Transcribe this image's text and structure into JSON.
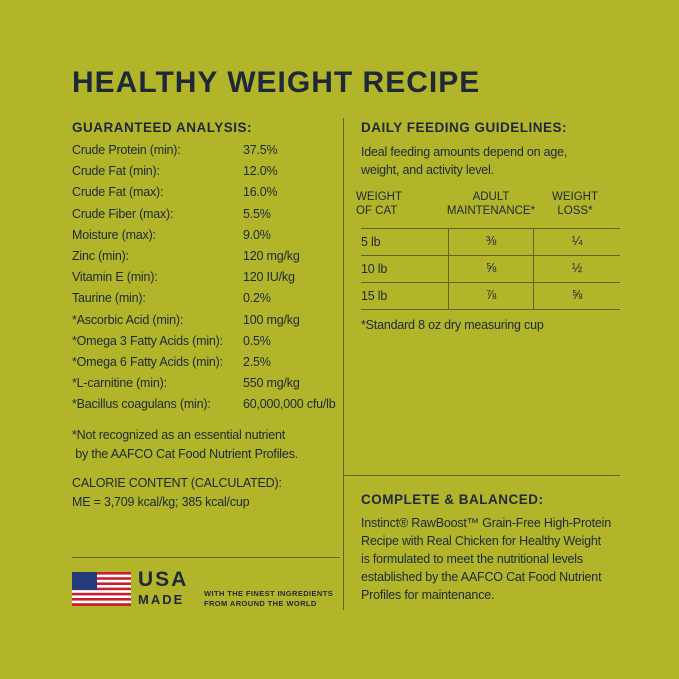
{
  "title": "HEALTHY WEIGHT RECIPE",
  "analysis": {
    "heading": "GUARANTEED ANALYSIS:",
    "rows": [
      [
        "Crude Protein (min):",
        "37.5%"
      ],
      [
        "Crude Fat (min):",
        "12.0%"
      ],
      [
        "Crude Fat (max):",
        "16.0%"
      ],
      [
        "Crude Fiber (max):",
        "5.5%"
      ],
      [
        "Moisture (max):",
        "9.0%"
      ],
      [
        "Zinc (min):",
        "120 mg/kg"
      ],
      [
        "Vitamin E (min):",
        "120 IU/kg"
      ],
      [
        "Taurine (min):",
        "0.2%"
      ],
      [
        "*Ascorbic Acid (min):",
        "100 mg/kg"
      ],
      [
        "*Omega 3 Fatty Acids (min):",
        "0.5%"
      ],
      [
        "*Omega 6 Fatty Acids (min):",
        "2.5%"
      ],
      [
        "*L-carnitine (min):",
        "550 mg/kg"
      ],
      [
        "*Bacillus coagulans (min):",
        "60,000,000 cfu/lb"
      ]
    ],
    "note": [
      "*Not recognized as an essential nutrient",
      " by the AAFCO Cat Food Nutrient Profiles."
    ],
    "calorie_heading": "CALORIE CONTENT (CALCULATED):",
    "calorie_text": "ME = 3,709 kcal/kg; 385 kcal/cup"
  },
  "feeding": {
    "heading": "DAILY FEEDING GUIDELINES:",
    "intro": "Ideal feeding amounts depend on age, weight, and activity level.",
    "table": {
      "header": [
        "WEIGHT OF CAT",
        "ADULT MAINTENANCE*",
        "WEIGHT LOSS*"
      ],
      "rows": [
        [
          "5 lb",
          "⅜",
          "¼"
        ],
        [
          "10 lb",
          "⅝",
          "½"
        ],
        [
          "15 lb",
          "⅞",
          "⅝"
        ]
      ]
    },
    "note": "*Standard 8 oz dry measuring cup"
  },
  "complete": {
    "heading": "COMPLETE & BALANCED:",
    "text": "Instinct® RawBoost™ Grain-Free High-Protein Recipe with Real Chicken for Healthy Weight is formulated to meet the nutritional levels established by the AAFCO Cat Food Nutrient Profiles for maintenance."
  },
  "usa": {
    "line1": "USA",
    "line2": "MADE",
    "tagline": [
      "WITH THE FINEST INGREDIENTS",
      "FROM AROUND THE WORLD"
    ]
  }
}
